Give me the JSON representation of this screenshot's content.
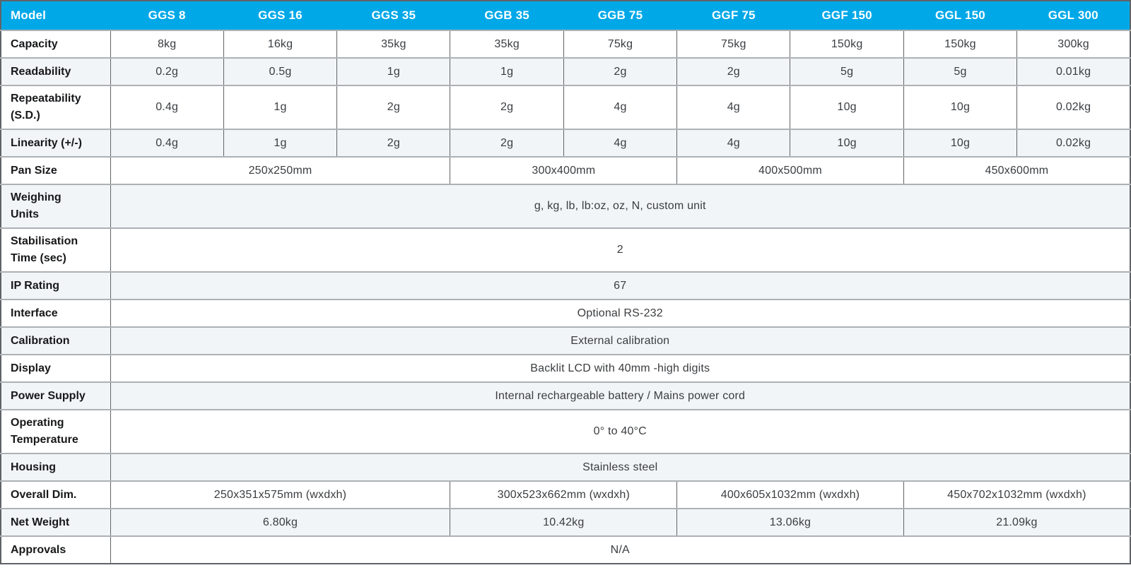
{
  "table": {
    "header": {
      "model_label": "Model",
      "models": [
        "GGS 8",
        "GGS 16",
        "GGS 35",
        "GGB 35",
        "GGB 75",
        "GGF 75",
        "GGF 150",
        "GGL 150",
        "GGL 300"
      ]
    },
    "rows": [
      {
        "label": "Capacity",
        "type": "cells",
        "values": [
          "8kg",
          "16kg",
          "35kg",
          "35kg",
          "75kg",
          "75kg",
          "150kg",
          "150kg",
          "300kg"
        ]
      },
      {
        "label": "Readability",
        "type": "cells",
        "values": [
          "0.2g",
          "0.5g",
          "1g",
          "1g",
          "2g",
          "2g",
          "5g",
          "5g",
          "0.01kg"
        ]
      },
      {
        "label": "Repeatability (S.D.)",
        "label_lines": [
          "Repeatability",
          "(S.D.)"
        ],
        "type": "cells",
        "values": [
          "0.4g",
          "1g",
          "2g",
          "2g",
          "4g",
          "4g",
          "10g",
          "10g",
          "0.02kg"
        ]
      },
      {
        "label": "Linearity (+/-)",
        "type": "cells",
        "values": [
          "0.4g",
          "1g",
          "2g",
          "2g",
          "4g",
          "4g",
          "10g",
          "10g",
          "0.02kg"
        ]
      },
      {
        "label": "Pan Size",
        "type": "groups",
        "groups": [
          {
            "span": 3,
            "value": "250x250mm"
          },
          {
            "span": 2,
            "value": "300x400mm"
          },
          {
            "span": 2,
            "value": "400x500mm"
          },
          {
            "span": 2,
            "value": "450x600mm"
          }
        ]
      },
      {
        "label": "Weighing Units",
        "label_lines": [
          "Weighing",
          "Units"
        ],
        "type": "merged",
        "value": "g, kg, lb, lb:oz, oz, N, custom unit"
      },
      {
        "label": "Stabilisation Time (sec)",
        "label_lines": [
          "Stabilisation",
          "Time (sec)"
        ],
        "type": "merged",
        "value": "2"
      },
      {
        "label": "IP Rating",
        "type": "merged",
        "value": "67"
      },
      {
        "label": "Interface",
        "type": "merged",
        "value": "Optional RS-232"
      },
      {
        "label": "Calibration",
        "type": "merged",
        "value": "External calibration"
      },
      {
        "label": "Display",
        "type": "merged",
        "value": "Backlit LCD with 40mm -high digits"
      },
      {
        "label": "Power Supply",
        "type": "merged",
        "value": "Internal rechargeable battery / Mains power cord"
      },
      {
        "label": "Operating Temperature",
        "label_lines": [
          "Operating",
          "Temperature"
        ],
        "type": "merged",
        "value": "0° to 40°C"
      },
      {
        "label": "Housing",
        "type": "merged",
        "value": "Stainless steel"
      },
      {
        "label": "Overall Dim.",
        "type": "groups",
        "groups": [
          {
            "span": 3,
            "value": "250x351x575mm (wxdxh)"
          },
          {
            "span": 2,
            "value": "300x523x662mm (wxdxh)"
          },
          {
            "span": 2,
            "value": "400x605x1032mm (wxdxh)"
          },
          {
            "span": 2,
            "value": "450x702x1032mm (wxdxh)"
          }
        ]
      },
      {
        "label": "Net Weight",
        "type": "groups",
        "groups": [
          {
            "span": 3,
            "value": "6.80kg"
          },
          {
            "span": 2,
            "value": "10.42kg"
          },
          {
            "span": 2,
            "value": "13.06kg"
          },
          {
            "span": 2,
            "value": "21.09kg"
          }
        ]
      },
      {
        "label": "Approvals",
        "type": "merged",
        "value": "N/A"
      }
    ],
    "colors": {
      "header_bg": "#00A8E8",
      "header_text": "#FFFFFF",
      "row_alt_bg": "#F2F5F7",
      "border_horizontal": "#ACB1B5",
      "border_vertical": "#5F6367",
      "label_text": "#17181A",
      "value_text": "#3A3D40"
    }
  }
}
